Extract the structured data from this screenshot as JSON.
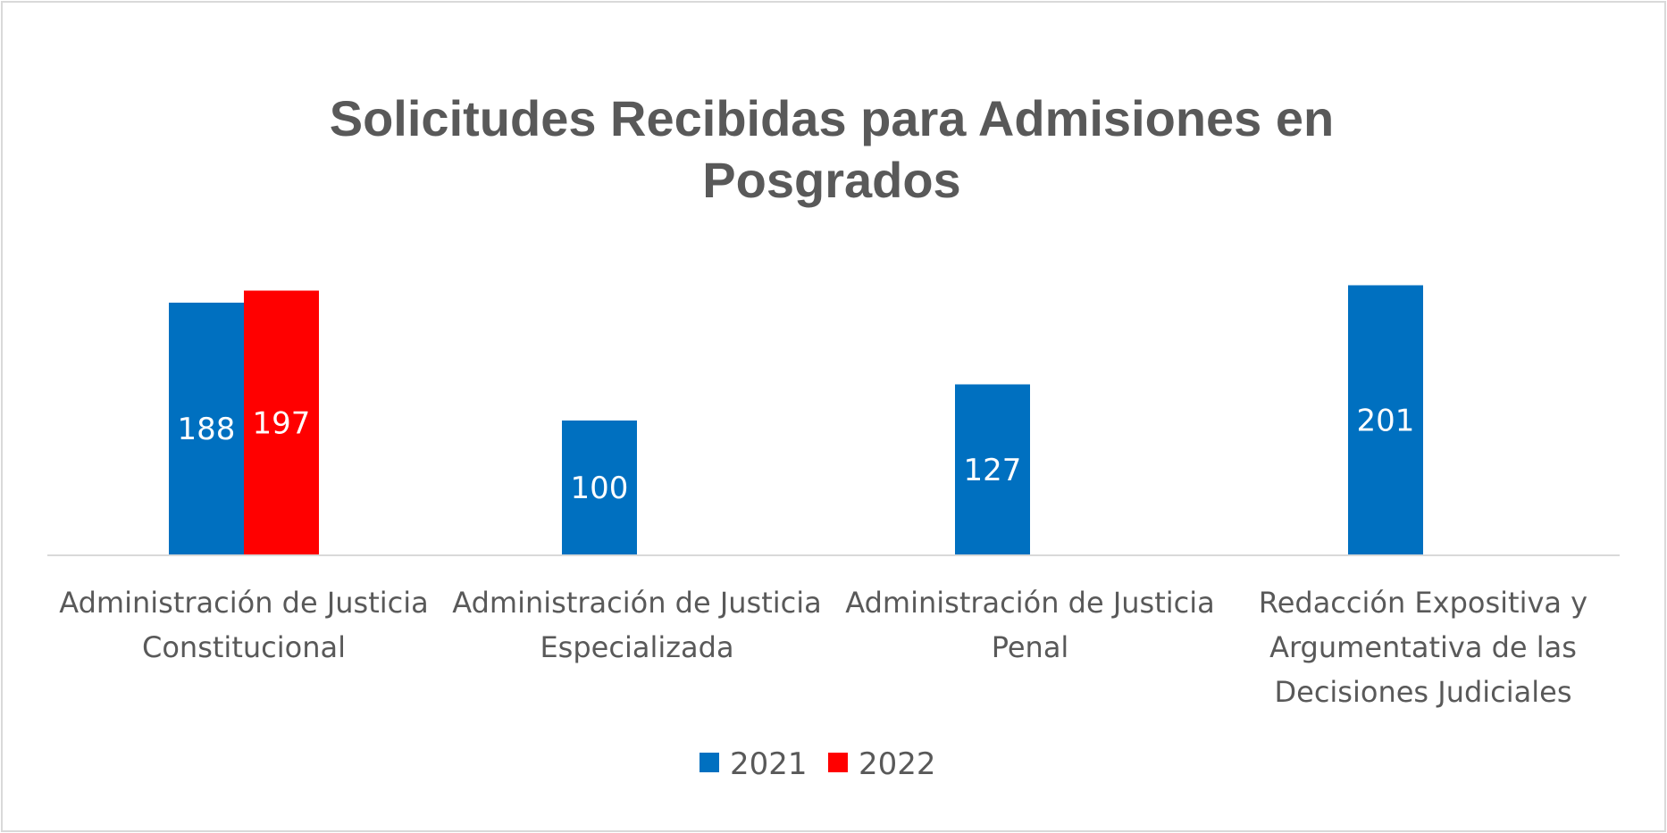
{
  "chart_data": {
    "type": "bar",
    "title_lines": [
      "Solicitudes Recibidas para Admisiones en",
      "Posgrados"
    ],
    "categories": [
      [
        "Administración de Justicia",
        "Constitucional"
      ],
      [
        "Administración de Justicia",
        "Especializada"
      ],
      [
        "Administración de Justicia",
        "Penal"
      ],
      [
        "Redacción Expositiva y",
        "Argumentativa de las",
        "Decisiones Judiciales"
      ]
    ],
    "series": [
      {
        "name": "2021",
        "color": "#0070c0",
        "values": [
          188,
          100,
          127,
          201
        ]
      },
      {
        "name": "2022",
        "color": "#ff0000",
        "values": [
          197,
          null,
          null,
          null
        ]
      }
    ],
    "ylim": [
      0,
      240
    ],
    "gridlines": false,
    "y_axis_visible": false,
    "data_labels": true,
    "legend_position": "bottom"
  }
}
